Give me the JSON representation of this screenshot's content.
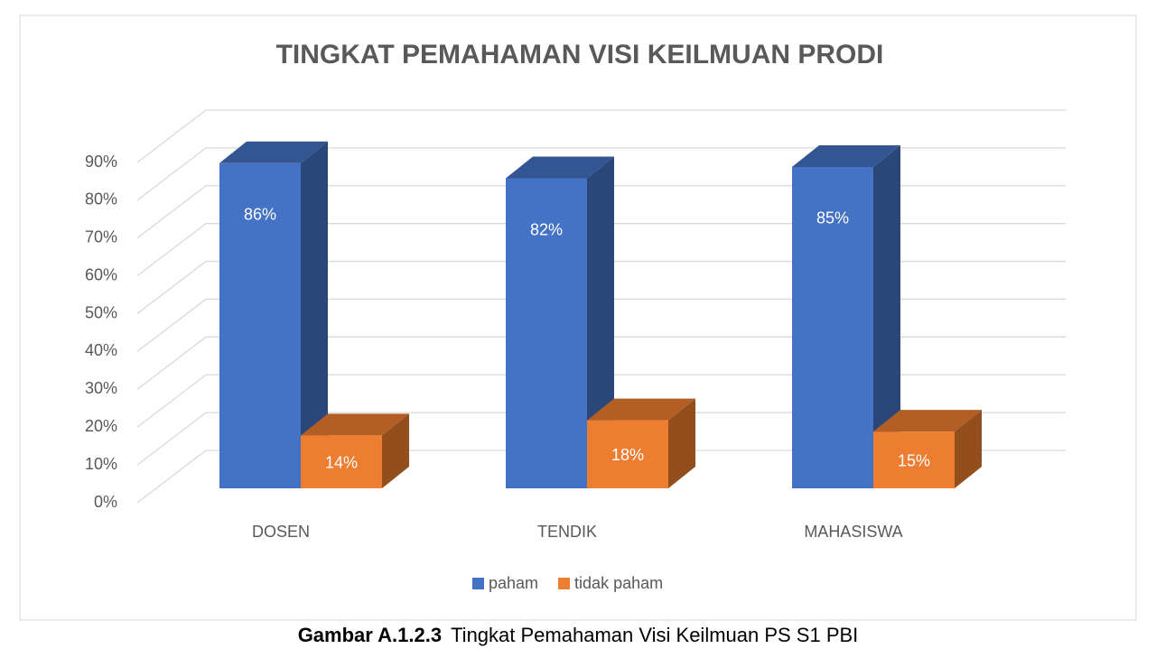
{
  "chart_data": {
    "type": "bar3d",
    "title": "TINGKAT PEMAHAMAN VISI KEILMUAN PRODI",
    "categories": [
      "DOSEN",
      "TENDIK",
      "MAHASISWA"
    ],
    "series": [
      {
        "name": "paham",
        "color": "#4472c4",
        "values": [
          86,
          82,
          85
        ],
        "value_labels": [
          "86%",
          "82%",
          "85%"
        ]
      },
      {
        "name": "tidak paham",
        "color": "#ed7d31",
        "values": [
          14,
          18,
          15
        ],
        "value_labels": [
          "14%",
          "18%",
          "15%"
        ]
      }
    ],
    "ylim": [
      0,
      90
    ],
    "yticks": [
      {
        "value": 0,
        "label": "0%"
      },
      {
        "value": 10,
        "label": "10%"
      },
      {
        "value": 20,
        "label": "20%"
      },
      {
        "value": 30,
        "label": "30%"
      },
      {
        "value": 40,
        "label": "40%"
      },
      {
        "value": 50,
        "label": "50%"
      },
      {
        "value": 60,
        "label": "60%"
      },
      {
        "value": 70,
        "label": "70%"
      },
      {
        "value": 80,
        "label": "80%"
      },
      {
        "value": 90,
        "label": "90%"
      }
    ],
    "grid": true,
    "legend": "bottom"
  },
  "caption": {
    "label": "Gambar A.1.2.3",
    "text": "Tingkat Pemahaman Visi Keilmuan PS S1 PBI"
  }
}
